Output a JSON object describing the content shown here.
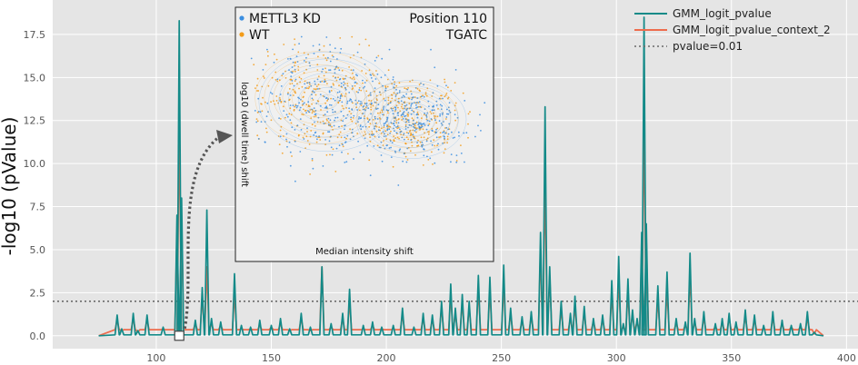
{
  "chart_data": [
    {
      "type": "line",
      "title": "",
      "xlabel": "",
      "ylabel": "-log10 (pValue)",
      "xlim": [
        55,
        405
      ],
      "ylim": [
        -0.75,
        19.5
      ],
      "xticks": [
        100,
        150,
        200,
        250,
        300,
        350,
        400
      ],
      "yticks": [
        0.0,
        2.5,
        5.0,
        7.5,
        10.0,
        12.5,
        15.0,
        17.5
      ],
      "ytick_labels": [
        "0.0",
        "2.5",
        "5.0",
        "7.5",
        "10.0",
        "12.5",
        "15.0",
        "17.5"
      ],
      "grid": true,
      "legend_position": "top-right",
      "peaks": {
        "x": [
          83,
          85,
          90,
          92,
          96,
          103,
          109,
          110,
          111,
          117,
          120,
          122,
          124,
          128,
          134,
          137,
          141,
          145,
          150,
          154,
          158,
          163,
          167,
          172,
          176,
          181,
          184,
          190,
          194,
          198,
          203,
          207,
          212,
          216,
          220,
          224,
          228,
          230,
          233,
          236,
          240,
          245,
          251,
          254,
          259,
          263,
          267,
          269,
          271,
          276,
          280,
          282,
          286,
          290,
          294,
          298,
          301,
          303,
          305,
          307,
          309,
          311,
          312,
          313,
          318,
          322,
          326,
          330,
          332,
          334,
          338,
          343,
          346,
          349,
          352,
          356,
          360,
          364,
          368,
          372,
          376,
          380,
          383,
          386
        ],
        "y": [
          1.2,
          0.4,
          1.3,
          0.3,
          1.2,
          0.5,
          7.0,
          18.3,
          8.0,
          0.9,
          2.8,
          7.3,
          1.0,
          0.8,
          3.6,
          0.6,
          0.5,
          0.9,
          0.6,
          1.0,
          0.4,
          1.3,
          0.5,
          4.0,
          0.7,
          1.3,
          2.7,
          0.6,
          0.8,
          0.5,
          0.6,
          1.6,
          0.5,
          1.3,
          1.2,
          2.0,
          3.0,
          1.6,
          2.4,
          2.0,
          3.5,
          3.4,
          4.1,
          1.6,
          1.1,
          1.4,
          6.0,
          13.3,
          4.0,
          2.0,
          1.3,
          2.3,
          1.7,
          1.0,
          1.2,
          3.2,
          4.6,
          0.7,
          3.3,
          1.5,
          1.0,
          6.0,
          18.5,
          6.5,
          2.9,
          3.7,
          1.0,
          0.8,
          4.8,
          1.0,
          1.4,
          0.7,
          1.0,
          1.3,
          0.8,
          1.5,
          1.2,
          0.6,
          1.4,
          0.9,
          0.6,
          0.7,
          1.4,
          0.2
        ],
        "y2": [
          0.9,
          0.3,
          1.0,
          0.2,
          0.9,
          0.4,
          6.0,
          13.0,
          7.0,
          0.7,
          2.3,
          4.0,
          0.7,
          0.6,
          2.4,
          0.4,
          0.4,
          0.6,
          0.5,
          0.7,
          0.3,
          1.0,
          0.3,
          4.0,
          0.5,
          1.0,
          2.0,
          0.4,
          0.6,
          0.4,
          0.4,
          1.2,
          0.4,
          1.0,
          0.9,
          1.6,
          2.4,
          1.3,
          1.9,
          1.6,
          2.7,
          2.6,
          3.0,
          1.2,
          0.8,
          1.1,
          5.0,
          9.3,
          3.5,
          1.5,
          1.0,
          1.7,
          1.3,
          0.8,
          0.9,
          2.4,
          3.4,
          0.5,
          2.5,
          1.2,
          0.8,
          5.0,
          13.0,
          5.5,
          2.1,
          2.6,
          0.7,
          0.6,
          3.6,
          0.7,
          1.0,
          0.5,
          0.7,
          1.0,
          0.6,
          1.1,
          0.9,
          0.4,
          1.0,
          0.7,
          0.5,
          0.5,
          1.0,
          0.1
        ]
      },
      "x_start": 75,
      "x_end": 390,
      "series": [
        {
          "name": "GMM_logit_pvalue",
          "color": "#138a88",
          "style": "solid"
        },
        {
          "name": "GMM_logit_pvalue_context_2",
          "color": "#ee6c4d",
          "style": "solid"
        },
        {
          "name": "pvalue=0.01",
          "color": "#6a6a6a",
          "style": "dotted",
          "y": 2.0
        }
      ],
      "annotation": {
        "marker_x": 110,
        "marker_y": 0.0,
        "arrow_style": "dotted"
      }
    },
    {
      "type": "scatter",
      "xlabel": "Median intensity shift",
      "ylabel": "log10 (dwell time) shift",
      "annotations": [
        "Position 110",
        "TGATC"
      ],
      "grid": false,
      "legend_position": "top-left",
      "series": [
        {
          "name": "METTL3 KD",
          "color": "#3b8ee0"
        },
        {
          "name": "WT",
          "color": "#f39c1a"
        }
      ],
      "clusters": [
        {
          "series": "WT",
          "center": [
            -0.42,
            0.38
          ],
          "spread": [
            0.28,
            0.26
          ]
        },
        {
          "series": "WT",
          "center": [
            0.32,
            0.18
          ],
          "spread": [
            0.22,
            0.2
          ]
        },
        {
          "series": "METTL3 KD",
          "center": [
            -0.35,
            0.34
          ],
          "spread": [
            0.3,
            0.28
          ]
        },
        {
          "series": "METTL3 KD",
          "center": [
            0.35,
            0.16
          ],
          "spread": [
            0.24,
            0.22
          ]
        }
      ],
      "xlim": [
        -1,
        1
      ],
      "ylim": [
        -1,
        1
      ]
    }
  ]
}
